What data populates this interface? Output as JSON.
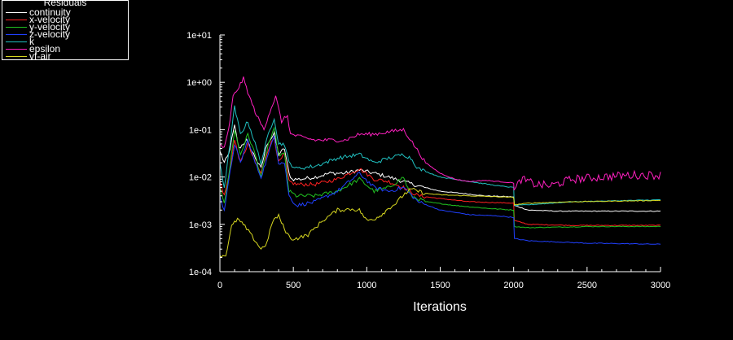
{
  "chart_data": {
    "type": "line",
    "title": "",
    "xlabel": "Iterations",
    "ylabel": "",
    "yscale": "log",
    "xlim": [
      0,
      3000
    ],
    "ylim": [
      0.0001,
      10
    ],
    "x_ticks": [
      "0",
      "500",
      "1000",
      "1500",
      "2000",
      "2500",
      "3000"
    ],
    "y_ticks": [
      "1e-04",
      "1e-03",
      "1e-02",
      "1e-01",
      "1e+00",
      "1e+01"
    ],
    "legend_title": "Residuals",
    "legend_position": "top-left",
    "series": [
      {
        "name": "continuity",
        "color": "#ffffff",
        "points": [
          [
            0,
            0.035
          ],
          [
            30,
            0.02
          ],
          [
            60,
            0.03
          ],
          [
            100,
            0.12
          ],
          [
            130,
            0.04
          ],
          [
            180,
            0.06
          ],
          [
            230,
            0.03
          ],
          [
            280,
            0.015
          ],
          [
            320,
            0.05
          ],
          [
            370,
            0.08
          ],
          [
            400,
            0.03
          ],
          [
            440,
            0.04
          ],
          [
            470,
            0.012
          ],
          [
            490,
            0.009
          ],
          [
            550,
            0.009
          ],
          [
            650,
            0.01
          ],
          [
            750,
            0.012
          ],
          [
            850,
            0.012
          ],
          [
            950,
            0.014
          ],
          [
            1050,
            0.012
          ],
          [
            1150,
            0.01
          ],
          [
            1250,
            0.008
          ],
          [
            1350,
            0.0065
          ],
          [
            1500,
            0.005
          ],
          [
            1650,
            0.0045
          ],
          [
            1800,
            0.004
          ],
          [
            2000,
            0.0038
          ],
          [
            2005,
            0.0025
          ],
          [
            2100,
            0.002
          ],
          [
            2300,
            0.0019
          ],
          [
            2600,
            0.0019
          ],
          [
            3000,
            0.0019
          ]
        ]
      },
      {
        "name": "x-velocity",
        "color": "#ff2020",
        "points": [
          [
            0,
            0.008
          ],
          [
            30,
            0.004
          ],
          [
            60,
            0.01
          ],
          [
            100,
            0.06
          ],
          [
            140,
            0.02
          ],
          [
            190,
            0.05
          ],
          [
            240,
            0.02
          ],
          [
            280,
            0.012
          ],
          [
            330,
            0.04
          ],
          [
            370,
            0.07
          ],
          [
            400,
            0.02
          ],
          [
            440,
            0.03
          ],
          [
            470,
            0.008
          ],
          [
            520,
            0.007
          ],
          [
            650,
            0.007
          ],
          [
            800,
            0.009
          ],
          [
            950,
            0.015
          ],
          [
            1050,
            0.009
          ],
          [
            1150,
            0.008
          ],
          [
            1250,
            0.006
          ],
          [
            1350,
            0.004
          ],
          [
            1500,
            0.0035
          ],
          [
            1700,
            0.003
          ],
          [
            2000,
            0.0028
          ],
          [
            2005,
            0.0012
          ],
          [
            2100,
            0.001
          ],
          [
            2400,
            0.00095
          ],
          [
            3000,
            0.00095
          ]
        ]
      },
      {
        "name": "y-velocity",
        "color": "#20c020",
        "points": [
          [
            0,
            0.006
          ],
          [
            30,
            0.003
          ],
          [
            60,
            0.01
          ],
          [
            100,
            0.1
          ],
          [
            140,
            0.03
          ],
          [
            190,
            0.08
          ],
          [
            240,
            0.03
          ],
          [
            280,
            0.01
          ],
          [
            330,
            0.05
          ],
          [
            370,
            0.1
          ],
          [
            400,
            0.03
          ],
          [
            440,
            0.03
          ],
          [
            470,
            0.005
          ],
          [
            520,
            0.004
          ],
          [
            650,
            0.004
          ],
          [
            800,
            0.005
          ],
          [
            950,
            0.009
          ],
          [
            1050,
            0.005
          ],
          [
            1150,
            0.006
          ],
          [
            1250,
            0.01
          ],
          [
            1300,
            0.004
          ],
          [
            1400,
            0.003
          ],
          [
            1600,
            0.0025
          ],
          [
            1800,
            0.0022
          ],
          [
            2000,
            0.002
          ],
          [
            2005,
            0.0009
          ],
          [
            2100,
            0.00085
          ],
          [
            2500,
            0.0009
          ],
          [
            3000,
            0.0009
          ]
        ]
      },
      {
        "name": "z-velocity",
        "color": "#2040ff",
        "points": [
          [
            0,
            0.004
          ],
          [
            30,
            0.002
          ],
          [
            60,
            0.008
          ],
          [
            100,
            0.05
          ],
          [
            140,
            0.02
          ],
          [
            190,
            0.06
          ],
          [
            240,
            0.02
          ],
          [
            280,
            0.01
          ],
          [
            330,
            0.03
          ],
          [
            370,
            0.08
          ],
          [
            400,
            0.02
          ],
          [
            440,
            0.02
          ],
          [
            470,
            0.004
          ],
          [
            520,
            0.0025
          ],
          [
            650,
            0.003
          ],
          [
            800,
            0.005
          ],
          [
            950,
            0.012
          ],
          [
            1050,
            0.006
          ],
          [
            1150,
            0.005
          ],
          [
            1250,
            0.006
          ],
          [
            1350,
            0.003
          ],
          [
            1500,
            0.002
          ],
          [
            1700,
            0.0016
          ],
          [
            1900,
            0.0015
          ],
          [
            2000,
            0.0014
          ],
          [
            2005,
            0.0005
          ],
          [
            2100,
            0.00045
          ],
          [
            2500,
            0.0004
          ],
          [
            3000,
            0.00038
          ]
        ]
      },
      {
        "name": "k",
        "color": "#20c0c0",
        "points": [
          [
            0,
            0.02
          ],
          [
            30,
            0.006
          ],
          [
            60,
            0.03
          ],
          [
            100,
            0.3
          ],
          [
            140,
            0.08
          ],
          [
            190,
            0.15
          ],
          [
            240,
            0.05
          ],
          [
            280,
            0.02
          ],
          [
            330,
            0.08
          ],
          [
            370,
            0.18
          ],
          [
            400,
            0.05
          ],
          [
            440,
            0.05
          ],
          [
            470,
            0.02
          ],
          [
            520,
            0.015
          ],
          [
            650,
            0.017
          ],
          [
            800,
            0.025
          ],
          [
            950,
            0.03
          ],
          [
            1050,
            0.02
          ],
          [
            1150,
            0.025
          ],
          [
            1250,
            0.03
          ],
          [
            1300,
            0.025
          ],
          [
            1350,
            0.015
          ],
          [
            1500,
            0.01
          ],
          [
            1700,
            0.008
          ],
          [
            1900,
            0.0065
          ],
          [
            2000,
            0.006
          ],
          [
            2005,
            0.0025
          ],
          [
            2100,
            0.0026
          ],
          [
            2400,
            0.003
          ],
          [
            3000,
            0.0033
          ]
        ]
      },
      {
        "name": "epsilon",
        "color": "#ff20c0",
        "points": [
          [
            0,
            0.05
          ],
          [
            30,
            0.04
          ],
          [
            60,
            0.1
          ],
          [
            90,
            0.5
          ],
          [
            130,
            0.8
          ],
          [
            160,
            1.2
          ],
          [
            200,
            0.5
          ],
          [
            250,
            0.2
          ],
          [
            300,
            0.1
          ],
          [
            330,
            0.2
          ],
          [
            380,
            0.5
          ],
          [
            420,
            0.15
          ],
          [
            460,
            0.2
          ],
          [
            480,
            0.08
          ],
          [
            550,
            0.07
          ],
          [
            650,
            0.06
          ],
          [
            750,
            0.06
          ],
          [
            850,
            0.06
          ],
          [
            950,
            0.08
          ],
          [
            1050,
            0.08
          ],
          [
            1150,
            0.09
          ],
          [
            1250,
            0.1
          ],
          [
            1300,
            0.06
          ],
          [
            1400,
            0.02
          ],
          [
            1500,
            0.012
          ],
          [
            1600,
            0.009
          ],
          [
            1700,
            0.008
          ],
          [
            1800,
            0.0085
          ],
          [
            1900,
            0.008
          ],
          [
            2000,
            0.0075
          ],
          [
            2005,
            0.005
          ],
          [
            2050,
            0.009
          ],
          [
            2150,
            0.007
          ],
          [
            2250,
            0.0065
          ],
          [
            2400,
            0.009
          ],
          [
            2600,
            0.01
          ],
          [
            2800,
            0.011
          ],
          [
            3000,
            0.011
          ]
        ]
      },
      {
        "name": "vf-air",
        "color": "#d8d820",
        "points": [
          [
            0,
            0.00022
          ],
          [
            40,
            0.00022
          ],
          [
            80,
            0.0009
          ],
          [
            120,
            0.0013
          ],
          [
            170,
            0.0009
          ],
          [
            230,
            0.0005
          ],
          [
            280,
            0.0003
          ],
          [
            320,
            0.0004
          ],
          [
            360,
            0.0012
          ],
          [
            400,
            0.0015
          ],
          [
            440,
            0.0008
          ],
          [
            480,
            0.0005
          ],
          [
            520,
            0.0005
          ],
          [
            600,
            0.0006
          ],
          [
            700,
            0.0012
          ],
          [
            800,
            0.002
          ],
          [
            900,
            0.0021
          ],
          [
            950,
            0.002
          ],
          [
            1000,
            0.0012
          ],
          [
            1050,
            0.0013
          ],
          [
            1100,
            0.0016
          ],
          [
            1150,
            0.0022
          ],
          [
            1200,
            0.0028
          ],
          [
            1250,
            0.0042
          ],
          [
            1300,
            0.0055
          ],
          [
            1350,
            0.005
          ],
          [
            1400,
            0.0045
          ],
          [
            1500,
            0.0042
          ],
          [
            1700,
            0.004
          ],
          [
            1900,
            0.0038
          ],
          [
            2000,
            0.0037
          ],
          [
            2005,
            0.0026
          ],
          [
            2100,
            0.0028
          ],
          [
            2400,
            0.003
          ],
          [
            3000,
            0.0032
          ]
        ]
      }
    ]
  }
}
